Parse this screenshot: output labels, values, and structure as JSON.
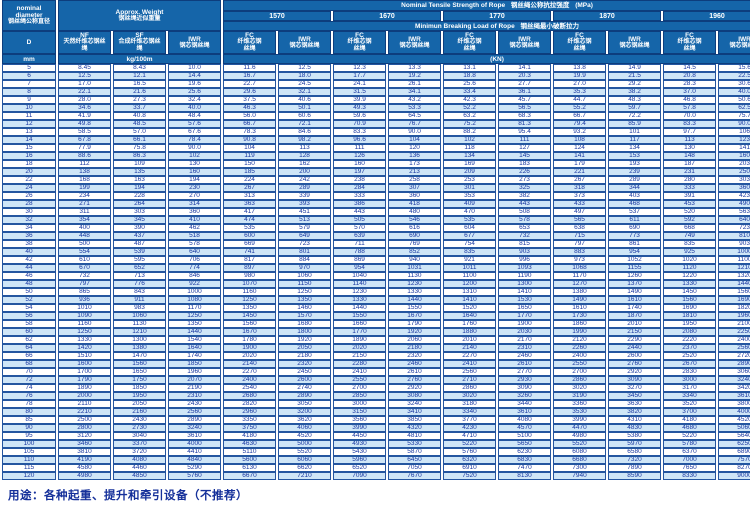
{
  "header": {
    "diameter": {
      "en": "nominal diameter",
      "zh": "钢丝绳公称直径",
      "symbol": "D",
      "unit": "mm"
    },
    "weight": {
      "en": "Approx. Weight",
      "zh": "钢丝绳近似重量",
      "unit": "kg/100m",
      "cols": [
        {
          "code": "NF",
          "zh": "天然纤维芯钢丝绳"
        },
        {
          "code": "SF",
          "zh": "合成纤维芯钢丝绳"
        },
        {
          "code": "IWR",
          "zh": "钢芯钢丝绳"
        }
      ]
    },
    "strength": {
      "en": "Nominal Tensile Strength of Rope",
      "zh": "钢丝绳公称抗拉强度",
      "unit": "(MPa)",
      "values": [
        "1570",
        "1670",
        "1770",
        "1870",
        "1960"
      ]
    },
    "breaking": {
      "en": "Minimun Breaking Load of Rope",
      "zh": "钢丝绳最小破断拉力",
      "unit": "(KN)",
      "fc": {
        "code": "FC",
        "zh": "纤维芯钢丝绳"
      },
      "iwr": {
        "code": "IWR",
        "zh": "钢芯钢丝绳"
      }
    }
  },
  "table": {
    "rows": [
      [
        "5",
        "8.45",
        "8.43",
        "10.0",
        "11.6",
        "12.5",
        "12.3",
        "13.3",
        "13.1",
        "14.1",
        "13.8",
        "14.9",
        "14.5",
        "15.6"
      ],
      [
        "6",
        "12.5",
        "12.1",
        "14.4",
        "16.7",
        "18.0",
        "17.7",
        "19.2",
        "18.8",
        "20.3",
        "19.9",
        "21.5",
        "20.8",
        "22.5"
      ],
      [
        "7",
        "17.0",
        "16.5",
        "19.6",
        "22.7",
        "24.5",
        "24.1",
        "26.1",
        "25.6",
        "27.7",
        "27.0",
        "29.2",
        "28.3",
        "30.6"
      ],
      [
        "8",
        "22.1",
        "21.6",
        "25.6",
        "29.6",
        "32.1",
        "31.5",
        "34.1",
        "33.4",
        "36.1",
        "35.3",
        "38.2",
        "37.0",
        "40.0"
      ],
      [
        "9",
        "28.0",
        "27.3",
        "32.4",
        "37.5",
        "40.6",
        "39.9",
        "43.2",
        "42.3",
        "45.7",
        "44.7",
        "48.3",
        "46.8",
        "50.6"
      ],
      [
        "10",
        "34.6",
        "33.7",
        "40.0",
        "46.3",
        "50.1",
        "49.3",
        "53.3",
        "52.2",
        "56.5",
        "55.2",
        "59.7",
        "57.8",
        "62.5"
      ],
      [
        "11",
        "41.9",
        "40.8",
        "48.4",
        "56.0",
        "60.6",
        "59.6",
        "64.5",
        "63.2",
        "68.3",
        "66.7",
        "72.2",
        "70.0",
        "75.7"
      ],
      [
        "12",
        "49.8",
        "48.5",
        "57.6",
        "66.7",
        "72.1",
        "70.9",
        "76.7",
        "75.2",
        "81.3",
        "79.4",
        "85.9",
        "83.3",
        "90.0"
      ],
      [
        "13",
        "58.5",
        "57.0",
        "67.6",
        "78.3",
        "84.6",
        "83.3",
        "90.0",
        "88.2",
        "95.4",
        "93.2",
        "101",
        "97.7",
        "106"
      ],
      [
        "14",
        "67.8",
        "66.1",
        "78.4",
        "90.8",
        "98.2",
        "96.6",
        "104",
        "102",
        "111",
        "108",
        "117",
        "113",
        "123"
      ],
      [
        "15",
        "77.9",
        "75.8",
        "90.0",
        "104",
        "113",
        "111",
        "120",
        "118",
        "127",
        "124",
        "134",
        "130",
        "141"
      ],
      [
        "16",
        "88.6",
        "86.3",
        "102",
        "119",
        "128",
        "126",
        "136",
        "134",
        "145",
        "141",
        "153",
        "148",
        "160"
      ],
      [
        "18",
        "112",
        "109",
        "130",
        "150",
        "162",
        "160",
        "173",
        "169",
        "183",
        "179",
        "193",
        "187",
        "203"
      ],
      [
        "20",
        "138",
        "135",
        "160",
        "185",
        "200",
        "197",
        "213",
        "209",
        "226",
        "221",
        "239",
        "231",
        "250"
      ],
      [
        "22",
        "168",
        "163",
        "194",
        "224",
        "242",
        "238",
        "258",
        "253",
        "273",
        "267",
        "289",
        "280",
        "303"
      ],
      [
        "24",
        "199",
        "194",
        "230",
        "267",
        "289",
        "284",
        "307",
        "301",
        "325",
        "318",
        "344",
        "333",
        "360"
      ],
      [
        "26",
        "234",
        "228",
        "270",
        "313",
        "339",
        "333",
        "360",
        "353",
        "382",
        "373",
        "403",
        "391",
        "423"
      ],
      [
        "28",
        "271",
        "264",
        "314",
        "363",
        "393",
        "386",
        "418",
        "409",
        "443",
        "433",
        "468",
        "453",
        "490"
      ],
      [
        "30",
        "311",
        "303",
        "360",
        "417",
        "451",
        "443",
        "480",
        "470",
        "508",
        "497",
        "537",
        "520",
        "563"
      ],
      [
        "32",
        "354",
        "345",
        "410",
        "474",
        "513",
        "505",
        "546",
        "535",
        "578",
        "565",
        "611",
        "592",
        "640"
      ],
      [
        "34",
        "400",
        "390",
        "462",
        "535",
        "579",
        "570",
        "616",
        "604",
        "653",
        "638",
        "690",
        "668",
        "723"
      ],
      [
        "36",
        "448",
        "437",
        "518",
        "600",
        "649",
        "639",
        "690",
        "677",
        "732",
        "715",
        "773",
        "749",
        "810"
      ],
      [
        "38",
        "500",
        "487",
        "578",
        "669",
        "723",
        "711",
        "769",
        "754",
        "815",
        "797",
        "861",
        "835",
        "903"
      ],
      [
        "40",
        "554",
        "539",
        "640",
        "741",
        "801",
        "788",
        "852",
        "835",
        "903",
        "883",
        "954",
        "925",
        "1000"
      ],
      [
        "42",
        "610",
        "595",
        "706",
        "817",
        "884",
        "869",
        "940",
        "921",
        "996",
        "973",
        "1052",
        "1020",
        "1100"
      ],
      [
        "44",
        "670",
        "652",
        "774",
        "897",
        "970",
        "954",
        "1031",
        "1011",
        "1093",
        "1068",
        "1155",
        "1120",
        "1210"
      ],
      [
        "46",
        "732",
        "713",
        "846",
        "980",
        "1060",
        "1040",
        "1130",
        "1100",
        "1190",
        "1170",
        "1260",
        "1220",
        "1320"
      ],
      [
        "48",
        "797",
        "776",
        "922",
        "1070",
        "1150",
        "1140",
        "1230",
        "1200",
        "1300",
        "1270",
        "1370",
        "1330",
        "1440"
      ],
      [
        "50",
        "865",
        "843",
        "1000",
        "1160",
        "1250",
        "1230",
        "1330",
        "1310",
        "1410",
        "1380",
        "1490",
        "1450",
        "1560"
      ],
      [
        "52",
        "936",
        "911",
        "1080",
        "1250",
        "1350",
        "1330",
        "1440",
        "1410",
        "1530",
        "1490",
        "1610",
        "1560",
        "1690"
      ],
      [
        "54",
        "1010",
        "983",
        "1170",
        "1350",
        "1460",
        "1440",
        "1550",
        "1520",
        "1650",
        "1610",
        "1740",
        "1690",
        "1820"
      ],
      [
        "56",
        "1090",
        "1060",
        "1250",
        "1450",
        "1570",
        "1550",
        "1670",
        "1640",
        "1770",
        "1730",
        "1870",
        "1810",
        "1960"
      ],
      [
        "58",
        "1160",
        "1130",
        "1350",
        "1560",
        "1680",
        "1660",
        "1790",
        "1760",
        "1900",
        "1860",
        "2010",
        "1950",
        "2100"
      ],
      [
        "60",
        "1250",
        "1210",
        "1440",
        "1670",
        "1800",
        "1770",
        "1920",
        "1880",
        "2030",
        "1990",
        "2150",
        "2080",
        "2250"
      ],
      [
        "62",
        "1330",
        "1300",
        "1540",
        "1780",
        "1920",
        "1890",
        "2060",
        "2010",
        "2170",
        "2120",
        "2290",
        "2220",
        "2400"
      ],
      [
        "64",
        "1420",
        "1380",
        "1640",
        "1900",
        "2050",
        "2020",
        "2180",
        "2140",
        "2310",
        "2260",
        "2440",
        "2370",
        "2560"
      ],
      [
        "66",
        "1510",
        "1470",
        "1740",
        "2020",
        "2180",
        "2150",
        "2320",
        "2270",
        "2460",
        "2400",
        "2600",
        "2520",
        "2720"
      ],
      [
        "68",
        "1600",
        "1560",
        "1850",
        "2140",
        "2320",
        "2280",
        "2460",
        "2410",
        "2610",
        "2550",
        "2760",
        "2670",
        "2890"
      ],
      [
        "70",
        "1700",
        "1650",
        "1960",
        "2270",
        "2450",
        "2410",
        "2610",
        "2560",
        "2770",
        "2700",
        "2920",
        "2830",
        "3060"
      ],
      [
        "72",
        "1790",
        "1750",
        "2070",
        "2400",
        "2600",
        "2550",
        "2760",
        "2710",
        "2930",
        "2860",
        "3090",
        "3000",
        "3240"
      ],
      [
        "74",
        "1890",
        "1850",
        "2190",
        "2540",
        "2740",
        "2700",
        "2920",
        "2860",
        "3090",
        "3020",
        "3270",
        "3170",
        "3420"
      ],
      [
        "76",
        "2000",
        "1950",
        "2310",
        "2680",
        "2890",
        "2850",
        "3080",
        "3020",
        "3260",
        "3190",
        "3450",
        "3340",
        "3610"
      ],
      [
        "78",
        "2110",
        "2050",
        "2430",
        "2820",
        "3050",
        "3000",
        "3240",
        "3180",
        "3440",
        "3360",
        "3630",
        "3520",
        "3800"
      ],
      [
        "80",
        "2210",
        "2160",
        "2560",
        "2960",
        "3200",
        "3150",
        "3410",
        "3340",
        "3610",
        "3530",
        "3820",
        "3700",
        "4000"
      ],
      [
        "85",
        "2500",
        "2430",
        "2890",
        "3350",
        "3620",
        "3560",
        "3850",
        "3770",
        "4080",
        "3990",
        "4310",
        "4180",
        "4520"
      ],
      [
        "90",
        "2800",
        "2730",
        "3240",
        "3750",
        "4060",
        "3990",
        "4320",
        "4230",
        "4570",
        "4470",
        "4830",
        "4680",
        "5060"
      ],
      [
        "95",
        "3120",
        "3040",
        "3610",
        "4180",
        "4520",
        "4450",
        "4810",
        "4710",
        "5100",
        "4980",
        "5380",
        "5220",
        "5640"
      ],
      [
        "100",
        "3460",
        "3370",
        "4000",
        "4630",
        "5000",
        "4930",
        "5330",
        "5220",
        "5650",
        "5520",
        "5970",
        "5780",
        "6250"
      ],
      [
        "105",
        "3810",
        "3720",
        "4410",
        "5110",
        "5520",
        "5430",
        "5870",
        "5760",
        "6230",
        "6080",
        "6580",
        "6370",
        "6890"
      ],
      [
        "110",
        "4190",
        "4080",
        "4840",
        "5600",
        "6060",
        "5960",
        "6450",
        "6320",
        "6830",
        "6680",
        "7320",
        "7000",
        "7570"
      ],
      [
        "115",
        "4580",
        "4460",
        "5290",
        "6130",
        "6620",
        "6520",
        "7050",
        "6910",
        "7470",
        "7300",
        "7890",
        "7650",
        "8270"
      ],
      [
        "120",
        "4980",
        "4850",
        "5760",
        "6670",
        "7210",
        "7090",
        "7670",
        "7520",
        "8130",
        "7940",
        "8590",
        "8330",
        "9000"
      ]
    ]
  },
  "footer": {
    "usage": "用途：各种起重、提升和牵引设备（不推荐）"
  },
  "colors": {
    "header_bg": "#1565a9",
    "stripe": "#cfe6f7",
    "border": "#2456a0",
    "data_text": "#1837a0",
    "footer_text": "#15309a"
  }
}
